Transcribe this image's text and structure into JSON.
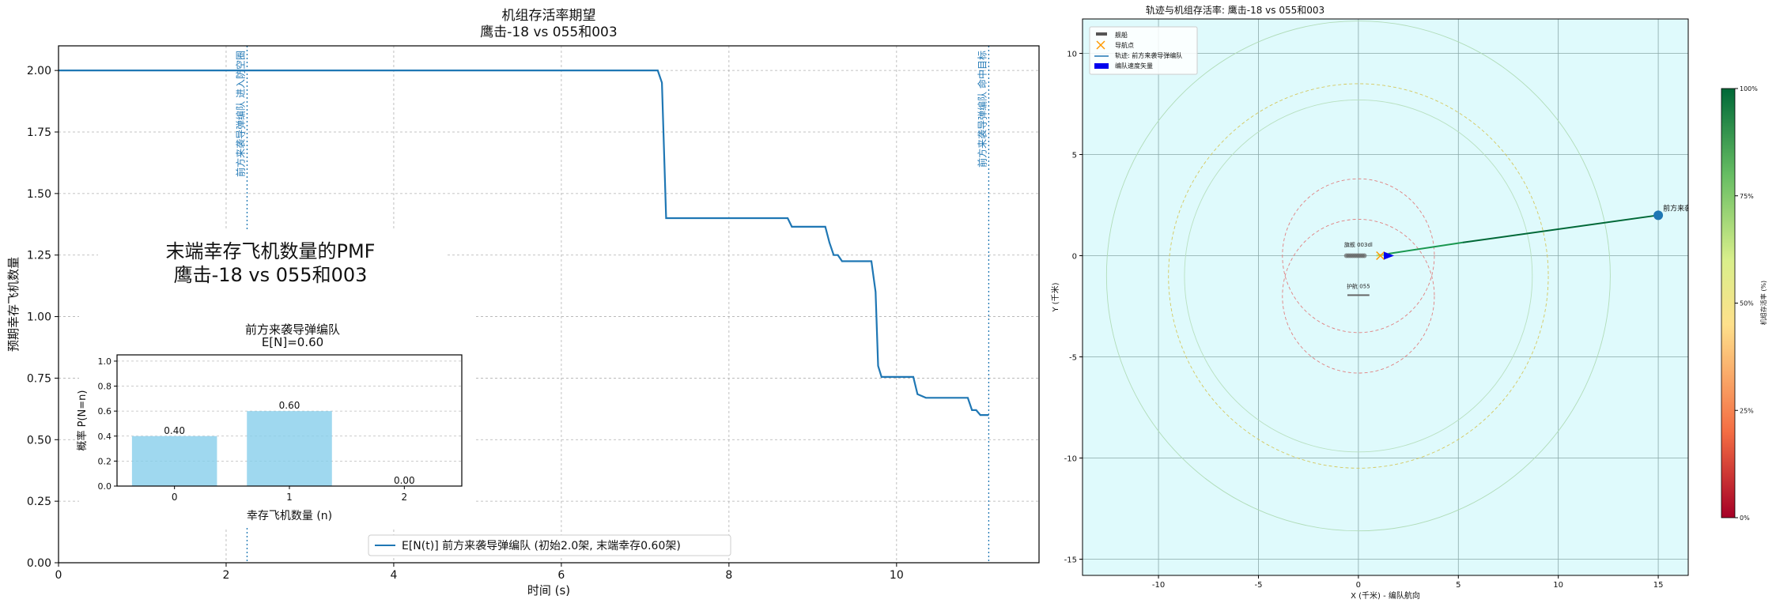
{
  "chart_data": [
    {
      "type": "line",
      "title": "机组存活率期望",
      "subtitle": "鹰击-18 vs 055和003",
      "xlabel": "时间 (s)",
      "ylabel": "预期幸存飞机数量",
      "xlim": [
        0,
        11.7
      ],
      "ylim": [
        0,
        2.1
      ],
      "xticks": [
        "0",
        "2",
        "4",
        "6",
        "8",
        "10"
      ],
      "xtick_values": [
        0,
        2,
        4,
        6,
        8,
        10
      ],
      "yticks": [
        "0.00",
        "0.25",
        "0.50",
        "0.75",
        "1.00",
        "1.25",
        "1.50",
        "1.75",
        "2.00"
      ],
      "ytick_values": [
        0,
        0.25,
        0.5,
        0.75,
        1.0,
        1.25,
        1.5,
        1.75,
        2.0
      ],
      "grid": true,
      "legend_position": "bottom-center",
      "series": [
        {
          "name": "E[N(t)] 前方来袭导弹编队 (初始2.0架, 末端幸存0.60架)",
          "color": "#1f77b4",
          "points": [
            [
              0,
              2.0
            ],
            [
              7.15,
              2.0
            ],
            [
              7.2,
              1.95
            ],
            [
              7.25,
              1.4
            ],
            [
              8.7,
              1.4
            ],
            [
              8.75,
              1.365
            ],
            [
              9.15,
              1.365
            ],
            [
              9.2,
              1.3
            ],
            [
              9.25,
              1.25
            ],
            [
              9.3,
              1.25
            ],
            [
              9.35,
              1.225
            ],
            [
              9.7,
              1.225
            ],
            [
              9.75,
              1.1
            ],
            [
              9.78,
              0.8
            ],
            [
              9.82,
              0.755
            ],
            [
              10.2,
              0.755
            ],
            [
              10.25,
              0.685
            ],
            [
              10.35,
              0.67
            ],
            [
              10.85,
              0.67
            ],
            [
              10.9,
              0.62
            ],
            [
              10.95,
              0.62
            ],
            [
              11.0,
              0.6
            ],
            [
              11.1,
              0.6
            ]
          ]
        }
      ],
      "vlines": [
        {
          "x": 2.25,
          "label": "前方来袭导弹编队 进入防空圈",
          "color": "#1f77b4"
        },
        {
          "x": 11.1,
          "label": "前方来袭导弹编队 命中目标",
          "color": "#1f77b4"
        }
      ]
    },
    {
      "type": "bar",
      "inset_heading": "末端幸存飞机数量的PMF",
      "inset_subheading": "鹰击-18 vs 055和003",
      "title": "前方来袭导弹编队",
      "subtitle": "E[N]=0.60",
      "xlabel": "幸存飞机数量 (n)",
      "ylabel": "概率 P(N=n)",
      "categories": [
        "0",
        "1",
        "2"
      ],
      "values": [
        0.4,
        0.6,
        0.0
      ],
      "value_labels": [
        "0.40",
        "0.60",
        "0.00"
      ],
      "ylim": [
        0,
        1.05
      ],
      "yticks": [
        "0.0",
        "0.2",
        "0.4",
        "0.6",
        "0.8",
        "1.0"
      ],
      "ytick_values": [
        0,
        0.2,
        0.4,
        0.6,
        0.8,
        1.0
      ],
      "bar_color": "#87ceeb",
      "grid": true
    },
    {
      "type": "scatter",
      "title": "轨迹与机组存活率: 鹰击-18 vs 055和003",
      "xlabel": "X (千米) - 编队航向",
      "ylabel": "Y (千米)",
      "xlim": [
        -13.8,
        16.5
      ],
      "ylim": [
        -15.8,
        11.7
      ],
      "xticks": [
        "-10",
        "-5",
        "0",
        "5",
        "10",
        "15"
      ],
      "xtick_values": [
        -10,
        -5,
        0,
        5,
        10,
        15
      ],
      "yticks": [
        "-15",
        "-10",
        "-5",
        "0",
        "5",
        "10"
      ],
      "ytick_values": [
        -15,
        -10,
        -5,
        0,
        5,
        10
      ],
      "background": "#dffafc",
      "grid": true,
      "legend_position": "top-left",
      "legend": [
        "舰船",
        "导航点",
        "轨迹: 前方来袭导弹编队",
        "编队速度矢量"
      ],
      "ship_labels": [
        {
          "text": "旗舰 003dl",
          "x": 0.0,
          "y": 0.45
        },
        {
          "text": "护航 055",
          "x": 0.0,
          "y": -1.6
        }
      ],
      "waypoint": {
        "x": 1.1,
        "y": 0.0,
        "color": "#ff9900"
      },
      "velocity_vector": {
        "x": 1.55,
        "y": 0.0,
        "color": "#0000ee"
      },
      "target": {
        "label": "前方来袭导弹编队",
        "x": 15.0,
        "y": 2.0
      },
      "trajectory": [
        [
          15.0,
          2.0
        ],
        [
          5.2,
          0.65
        ],
        [
          1.5,
          0.1
        ],
        [
          0.9,
          0.0
        ]
      ],
      "circles": [
        {
          "cx": 0,
          "cy": 0,
          "r": 3.8,
          "color": "#e08080",
          "dash": true
        },
        {
          "cx": 0,
          "cy": -2.0,
          "r": 3.8,
          "color": "#e08080",
          "dash": true
        },
        {
          "cx": 0,
          "cy": -1.0,
          "r": 9.5,
          "color": "#d4c860",
          "dash": true
        },
        {
          "cx": 0,
          "cy": -1.0,
          "r": 12.6,
          "color": "#b0dcb8",
          "dash": false
        },
        {
          "cx": 0,
          "cy": -1.0,
          "r": 8.7,
          "color": "#b8e0c0",
          "dash": false
        }
      ],
      "colorbar": {
        "label": "机组存活率 (%)",
        "ticks": [
          "0%",
          "25%",
          "50%",
          "75%",
          "100%"
        ],
        "colors": [
          "#a50026",
          "#f46d43",
          "#fee08b",
          "#d9ef8b",
          "#66bd63",
          "#006837"
        ]
      }
    }
  ]
}
